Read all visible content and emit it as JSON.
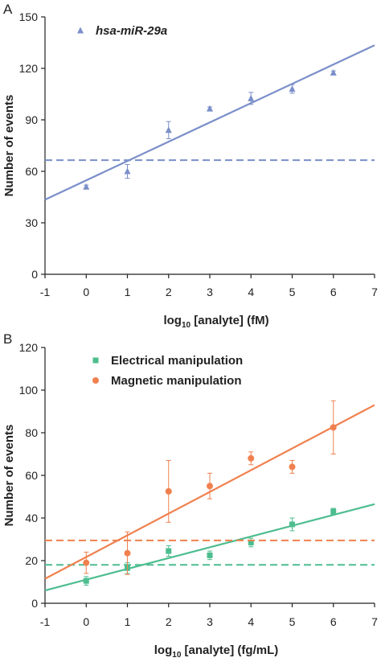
{
  "chart_data": [
    {
      "panel_label": "A",
      "type": "scatter",
      "title": "",
      "xlabel_main": "log",
      "xlabel_sub": "10",
      "xlabel_rest": "[analyte] (fM)",
      "ylabel": "Number of events",
      "xlim": [
        -1,
        7
      ],
      "ylim": [
        0,
        150
      ],
      "xticks": [
        "-1",
        "0",
        "1",
        "2",
        "3",
        "4",
        "5",
        "6",
        "7"
      ],
      "yticks": [
        "0",
        "30",
        "60",
        "90",
        "120",
        "150"
      ],
      "grid": false,
      "legend_position": "top-left",
      "series": [
        {
          "name": "hsa-miR-29a",
          "marker": "triangle",
          "color": "#7b8fc9",
          "x": [
            0,
            1,
            2,
            3,
            4,
            5,
            6
          ],
          "y": [
            51,
            60,
            84,
            96.5,
            102.5,
            108,
            117.5
          ],
          "err": [
            1,
            4,
            5,
            1,
            3.5,
            2.5,
            1
          ],
          "fit": {
            "x": [
              -1,
              7
            ],
            "y": [
              43.5,
              133.5
            ]
          },
          "threshold": 66.5
        }
      ]
    },
    {
      "panel_label": "B",
      "type": "scatter",
      "title": "",
      "xlabel_main": "log",
      "xlabel_sub": "10",
      "xlabel_rest": "[analyte] (fg/mL)",
      "ylabel": "Number of events",
      "xlim": [
        -1,
        7
      ],
      "ylim": [
        0,
        120
      ],
      "xticks": [
        "-1",
        "0",
        "1",
        "2",
        "3",
        "4",
        "5",
        "6",
        "7"
      ],
      "yticks": [
        "0",
        "20",
        "40",
        "60",
        "80",
        "100",
        "120"
      ],
      "grid": false,
      "legend_position": "top-left",
      "series": [
        {
          "name": "Electrical manipulation",
          "marker": "square",
          "color": "#4dbd8f",
          "x": [
            0,
            1,
            2,
            3,
            4,
            5,
            6
          ],
          "y": [
            10.5,
            16.5,
            24.5,
            22.5,
            28.5,
            37,
            43
          ],
          "err": [
            2,
            2.5,
            2.5,
            2,
            2,
            3,
            1.5
          ],
          "fit": {
            "x": [
              -1,
              7
            ],
            "y": [
              6,
              46.5
            ]
          },
          "threshold": 18
        },
        {
          "name": "Magnetic manipulation",
          "marker": "circle",
          "color": "#f0814f",
          "x": [
            0,
            1,
            2,
            3,
            4,
            5,
            6
          ],
          "y": [
            19,
            23.5,
            52.5,
            55,
            68,
            64,
            82.5
          ],
          "err": [
            5,
            10,
            14.5,
            6,
            3,
            3,
            12.5
          ],
          "fit": {
            "x": [
              -1,
              7
            ],
            "y": [
              11.5,
              93
            ]
          },
          "threshold": 29.5
        }
      ]
    }
  ]
}
